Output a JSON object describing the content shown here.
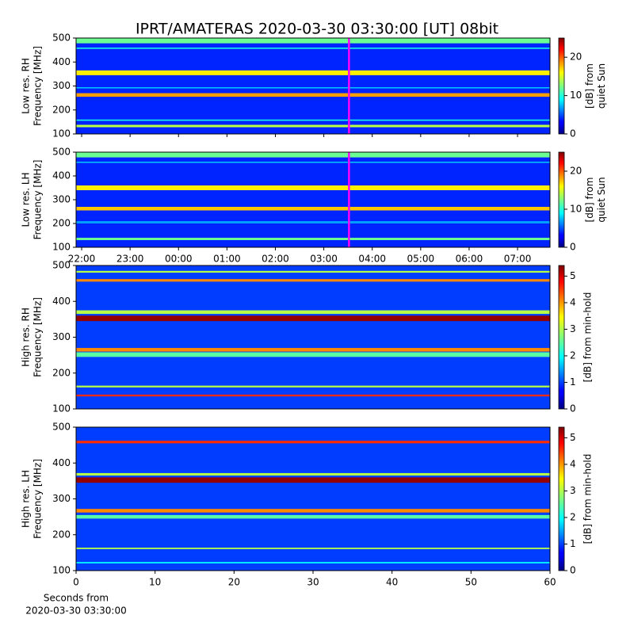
{
  "title": "IPRT/AMATERAS 2020-03-30 03:30:00 [UT]   08bit",
  "chart_data": [
    {
      "type": "heatmap",
      "ylabel": [
        "Low res. RH",
        "Frequency [MHz]"
      ],
      "xlim": [
        21.885,
        31.67
      ],
      "ylim": [
        100,
        500
      ],
      "yticks": [
        100,
        200,
        300,
        400,
        500
      ],
      "background": 4,
      "marker": 27.52,
      "marker_color": "#ff00ff",
      "bands": [
        {
          "y": [
            478,
            500
          ],
          "value": 12
        },
        {
          "y": [
            455,
            460
          ],
          "value": 10
        },
        {
          "y": [
            345,
            365
          ],
          "value": 16
        },
        {
          "y": [
            290,
            295
          ],
          "value": 8
        },
        {
          "y": [
            255,
            270
          ],
          "value": 18
        },
        {
          "y": [
            155,
            160
          ],
          "value": 10
        },
        {
          "y": [
            128,
            138
          ],
          "value": 14
        }
      ],
      "colorbar": {
        "label": [
          "[dB] from",
          "quiet Sun"
        ],
        "lim": [
          0,
          25
        ],
        "ticks": [
          0,
          10,
          20
        ]
      }
    },
    {
      "type": "heatmap",
      "ylabel": [
        "Low res. LH",
        "Frequency [MHz]"
      ],
      "xlim": [
        21.885,
        31.67
      ],
      "ylim": [
        100,
        500
      ],
      "yticks": [
        100,
        200,
        300,
        400,
        500
      ],
      "xticks": [
        {
          "value": 22,
          "label": "22:00"
        },
        {
          "value": 23,
          "label": "23:00"
        },
        {
          "value": 24,
          "label": "00:00"
        },
        {
          "value": 25,
          "label": "01:00"
        },
        {
          "value": 26,
          "label": "02:00"
        },
        {
          "value": 27,
          "label": "03:00"
        },
        {
          "value": 28,
          "label": "04:00"
        },
        {
          "value": 29,
          "label": "05:00"
        },
        {
          "value": 30,
          "label": "06:00"
        },
        {
          "value": 31,
          "label": "07:00"
        }
      ],
      "background": 4,
      "marker": 27.52,
      "marker_color": "#ff00ff",
      "bands": [
        {
          "y": [
            478,
            500
          ],
          "value": 12
        },
        {
          "y": [
            455,
            460
          ],
          "value": 8
        },
        {
          "y": [
            340,
            360
          ],
          "value": 16
        },
        {
          "y": [
            255,
            270
          ],
          "value": 17
        },
        {
          "y": [
            200,
            210
          ],
          "value": 7
        },
        {
          "y": [
            130,
            140
          ],
          "value": 12
        }
      ],
      "colorbar": {
        "label": [
          "[dB] from",
          "quiet Sun"
        ],
        "lim": [
          0,
          25
        ],
        "ticks": [
          0,
          10,
          20
        ]
      }
    },
    {
      "type": "heatmap",
      "ylabel": [
        "High res. RH",
        "Frequency [MHz]"
      ],
      "xlim": [
        0,
        60
      ],
      "ylim": [
        100,
        500
      ],
      "yticks": [
        100,
        200,
        300,
        400,
        500
      ],
      "background": 1,
      "bands": [
        {
          "y": [
            480,
            485
          ],
          "value": 3
        },
        {
          "y": [
            455,
            462
          ],
          "value": 4
        },
        {
          "y": [
            365,
            375
          ],
          "value": 3
        },
        {
          "y": [
            345,
            360
          ],
          "value": 5.3
        },
        {
          "y": [
            260,
            270
          ],
          "value": 4
        },
        {
          "y": [
            245,
            258
          ],
          "value": 2.5
        },
        {
          "y": [
            160,
            165
          ],
          "value": 3
        },
        {
          "y": [
            135,
            140
          ],
          "value": 4.5
        }
      ],
      "colorbar": {
        "label": [
          "[dB] from min-hold"
        ],
        "lim": [
          0,
          5.4
        ],
        "ticks": [
          0,
          1,
          2,
          3,
          4,
          5
        ]
      }
    },
    {
      "type": "heatmap",
      "ylabel": [
        "High res. LH",
        "Frequency [MHz]"
      ],
      "xlim": [
        0,
        60
      ],
      "ylim": [
        100,
        500
      ],
      "yticks": [
        100,
        200,
        300,
        400,
        500
      ],
      "xticks": [
        0,
        10,
        20,
        30,
        40,
        50,
        60
      ],
      "xlabel": [
        "Seconds from",
        "2020-03-30 03:30:00"
      ],
      "background": 1,
      "bands": [
        {
          "y": [
            455,
            462
          ],
          "value": 4.5
        },
        {
          "y": [
            365,
            372
          ],
          "value": 3
        },
        {
          "y": [
            345,
            360
          ],
          "value": 5.3
        },
        {
          "y": [
            262,
            272
          ],
          "value": 4
        },
        {
          "y": [
            245,
            255
          ],
          "value": 2.5
        },
        {
          "y": [
            160,
            164
          ],
          "value": 3
        },
        {
          "y": [
            120,
            124
          ],
          "value": 2
        }
      ],
      "colorbar": {
        "label": [
          "[dB] from min-hold"
        ],
        "lim": [
          0,
          5.4
        ],
        "ticks": [
          0,
          1,
          2,
          3,
          4,
          5
        ]
      }
    }
  ]
}
